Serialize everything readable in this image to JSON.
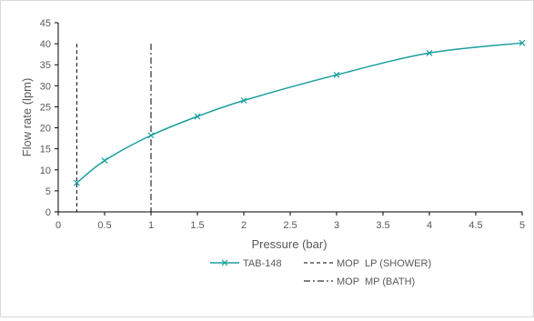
{
  "chart_data": {
    "type": "line",
    "xlabel": "Pressure (bar)",
    "ylabel": "Flow rate (lpm)",
    "xlim": [
      0,
      5
    ],
    "ylim": [
      0,
      45
    ],
    "x_ticks": [
      "0",
      "0.5",
      "1",
      "1.5",
      "2",
      "2.5",
      "3",
      "3.5",
      "4",
      "4.5",
      "5"
    ],
    "y_ticks": [
      "0",
      "5",
      "10",
      "15",
      "20",
      "25",
      "30",
      "35",
      "40",
      "45"
    ],
    "grid": false,
    "legend_position": "bottom",
    "series": [
      {
        "name": "TAB-148",
        "color": "#1a9e9e",
        "marker": "x",
        "x": [
          0.2,
          0.5,
          1,
          1.5,
          2,
          3,
          4,
          5
        ],
        "y": [
          6.9,
          12.2,
          18.2,
          22.7,
          26.5,
          32.6,
          37.8,
          40.2
        ]
      }
    ],
    "reference_lines": [
      {
        "name": "MOP  LP (SHOWER)",
        "x": 0.2,
        "y_top": 40,
        "style": "dashed",
        "color": "#000000"
      },
      {
        "name": "MOP  MP (BATH)",
        "x": 1,
        "y_top": 40,
        "style": "dashdot",
        "color": "#000000"
      }
    ]
  }
}
